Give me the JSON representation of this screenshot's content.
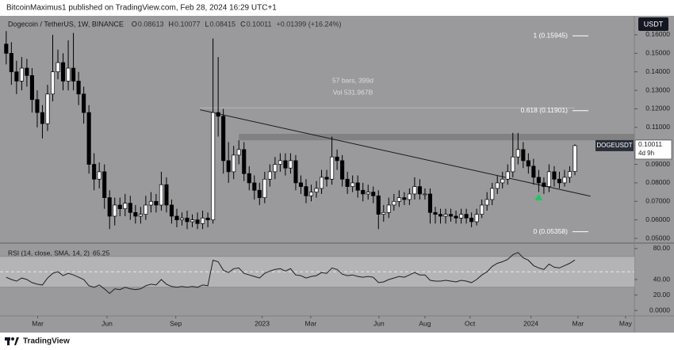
{
  "header": "BitcoinMaximus1 published on TradingView.com, Feb 28, 2024 16:29 UTC+1",
  "footer": "TradingView",
  "chart_data": [
    {
      "type": "candlestick",
      "legend": "Dogecoin / TetherUS, 1W, BINANCE",
      "ohlc_letters": [
        "O",
        "H",
        "L",
        "C"
      ],
      "change": "+0.01399 (+16.24%)",
      "symbol": "DOGEUSDT",
      "countdown": "4d 9h",
      "currency": "USDT",
      "up_color": "#ffffff",
      "down_color": "#000000",
      "grid": false,
      "xlim": [
        -1.2,
        121.5
      ],
      "ylim": [
        0.0483,
        0.1694
      ],
      "yticks": [
        {
          "value": 0.16,
          "label": "0.16000"
        },
        {
          "value": 0.15,
          "label": "0.15000"
        },
        {
          "value": 0.14,
          "label": "0.14000"
        },
        {
          "value": 0.13,
          "label": "0.13000"
        },
        {
          "value": 0.12,
          "label": "0.12000"
        },
        {
          "value": 0.11,
          "label": "0.11000"
        },
        {
          "value": 0.1,
          "label": "0.10000"
        },
        {
          "value": 0.09,
          "label": "0.09000"
        },
        {
          "value": 0.08,
          "label": "0.08000"
        },
        {
          "value": 0.07,
          "label": "0.07000"
        },
        {
          "value": 0.06,
          "label": "0.06000"
        },
        {
          "value": 0.05,
          "label": "0.05000"
        }
      ],
      "xticks": [
        {
          "value": 6.1,
          "label": "Mar"
        },
        {
          "value": 19.5,
          "label": "Jun"
        },
        {
          "value": 32.8,
          "label": "Sep"
        },
        {
          "value": 49.5,
          "label": "2023"
        },
        {
          "value": 58.9,
          "label": "Mar"
        },
        {
          "value": 72.1,
          "label": "Jun"
        },
        {
          "value": 81,
          "label": "Aug"
        },
        {
          "value": 89.7,
          "label": "Oct"
        },
        {
          "value": 101.5,
          "label": "2024"
        },
        {
          "value": 110.6,
          "label": "Mar"
        },
        {
          "value": 119.8,
          "label": "May"
        }
      ],
      "open": [
        0.155,
        0.15,
        0.14,
        0.135,
        0.142,
        0.138,
        0.125,
        0.118,
        0.112,
        0.128,
        0.14,
        0.145,
        0.135,
        0.142,
        0.135,
        0.128,
        0.118,
        0.09,
        0.082,
        0.086,
        0.072,
        0.062,
        0.068,
        0.066,
        0.069,
        0.064,
        0.062,
        0.063,
        0.068,
        0.07,
        0.068,
        0.079,
        0.068,
        0.062,
        0.06,
        0.061,
        0.059,
        0.06,
        0.058,
        0.061,
        0.06,
        0.118,
        0.116,
        0.092,
        0.086,
        0.095,
        0.098,
        0.085,
        0.08,
        0.076,
        0.072,
        0.082,
        0.086,
        0.09,
        0.092,
        0.088,
        0.092,
        0.08,
        0.078,
        0.073,
        0.075,
        0.077,
        0.083,
        0.082,
        0.094,
        0.092,
        0.082,
        0.078,
        0.08,
        0.076,
        0.074,
        0.075,
        0.073,
        0.063,
        0.064,
        0.068,
        0.07,
        0.072,
        0.071,
        0.074,
        0.078,
        0.074,
        0.074,
        0.064,
        0.063,
        0.062,
        0.063,
        0.062,
        0.061,
        0.063,
        0.061,
        0.059,
        0.063,
        0.068,
        0.071,
        0.077,
        0.08,
        0.082,
        0.086,
        0.094,
        0.098,
        0.092,
        0.089,
        0.083,
        0.08,
        0.078,
        0.086,
        0.082,
        0.08,
        0.083,
        0.08613
      ],
      "high": [
        0.162,
        0.156,
        0.146,
        0.148,
        0.147,
        0.142,
        0.13,
        0.122,
        0.133,
        0.16,
        0.152,
        0.15,
        0.157,
        0.161,
        0.14,
        0.132,
        0.122,
        0.096,
        0.091,
        0.09,
        0.076,
        0.072,
        0.072,
        0.074,
        0.073,
        0.068,
        0.067,
        0.073,
        0.075,
        0.074,
        0.086,
        0.083,
        0.071,
        0.066,
        0.064,
        0.065,
        0.063,
        0.064,
        0.065,
        0.064,
        0.158,
        0.148,
        0.12,
        0.102,
        0.1,
        0.103,
        0.102,
        0.089,
        0.084,
        0.08,
        0.086,
        0.09,
        0.094,
        0.096,
        0.096,
        0.096,
        0.095,
        0.084,
        0.082,
        0.079,
        0.081,
        0.087,
        0.087,
        0.105,
        0.098,
        0.095,
        0.086,
        0.084,
        0.084,
        0.08,
        0.079,
        0.078,
        0.076,
        0.068,
        0.072,
        0.074,
        0.076,
        0.075,
        0.077,
        0.083,
        0.082,
        0.077,
        0.077,
        0.067,
        0.066,
        0.066,
        0.066,
        0.065,
        0.066,
        0.066,
        0.064,
        0.066,
        0.071,
        0.075,
        0.08,
        0.084,
        0.086,
        0.09,
        0.107,
        0.107,
        0.102,
        0.096,
        0.093,
        0.087,
        0.083,
        0.09,
        0.089,
        0.086,
        0.087,
        0.089,
        0.10077
      ],
      "low": [
        0.144,
        0.133,
        0.128,
        0.13,
        0.132,
        0.118,
        0.11,
        0.104,
        0.108,
        0.124,
        0.136,
        0.13,
        0.13,
        0.13,
        0.122,
        0.112,
        0.085,
        0.076,
        0.077,
        0.066,
        0.055,
        0.057,
        0.062,
        0.062,
        0.06,
        0.058,
        0.058,
        0.06,
        0.064,
        0.064,
        0.065,
        0.064,
        0.058,
        0.056,
        0.057,
        0.055,
        0.056,
        0.055,
        0.055,
        0.056,
        0.058,
        0.105,
        0.085,
        0.08,
        0.082,
        0.09,
        0.081,
        0.076,
        0.071,
        0.068,
        0.069,
        0.078,
        0.082,
        0.086,
        0.084,
        0.085,
        0.076,
        0.074,
        0.069,
        0.07,
        0.072,
        0.074,
        0.078,
        0.079,
        0.087,
        0.078,
        0.074,
        0.075,
        0.072,
        0.07,
        0.071,
        0.069,
        0.055,
        0.059,
        0.061,
        0.065,
        0.067,
        0.068,
        0.068,
        0.071,
        0.071,
        0.071,
        0.058,
        0.058,
        0.058,
        0.058,
        0.059,
        0.058,
        0.058,
        0.058,
        0.056,
        0.057,
        0.061,
        0.065,
        0.068,
        0.074,
        0.077,
        0.079,
        0.083,
        0.09,
        0.088,
        0.085,
        0.079,
        0.075,
        0.074,
        0.075,
        0.078,
        0.077,
        0.078,
        0.08,
        0.08415
      ],
      "close": [
        0.15,
        0.14,
        0.135,
        0.142,
        0.138,
        0.125,
        0.118,
        0.112,
        0.128,
        0.14,
        0.145,
        0.135,
        0.142,
        0.135,
        0.128,
        0.118,
        0.09,
        0.082,
        0.086,
        0.072,
        0.062,
        0.068,
        0.066,
        0.069,
        0.064,
        0.062,
        0.063,
        0.068,
        0.07,
        0.068,
        0.079,
        0.068,
        0.062,
        0.06,
        0.061,
        0.059,
        0.06,
        0.058,
        0.061,
        0.06,
        0.118,
        0.116,
        0.092,
        0.086,
        0.095,
        0.098,
        0.085,
        0.08,
        0.076,
        0.072,
        0.082,
        0.086,
        0.09,
        0.092,
        0.088,
        0.092,
        0.08,
        0.078,
        0.073,
        0.075,
        0.077,
        0.083,
        0.082,
        0.094,
        0.092,
        0.082,
        0.078,
        0.08,
        0.076,
        0.074,
        0.075,
        0.073,
        0.063,
        0.064,
        0.068,
        0.07,
        0.072,
        0.071,
        0.074,
        0.078,
        0.074,
        0.074,
        0.064,
        0.063,
        0.062,
        0.063,
        0.062,
        0.061,
        0.063,
        0.061,
        0.059,
        0.063,
        0.068,
        0.071,
        0.077,
        0.08,
        0.082,
        0.086,
        0.094,
        0.098,
        0.092,
        0.089,
        0.083,
        0.08,
        0.078,
        0.086,
        0.082,
        0.08,
        0.083,
        0.08613,
        0.10011
      ],
      "fib_levels": [
        {
          "value": 0.15945,
          "label": "1 (0.15945)"
        },
        {
          "value": 0.11901,
          "label": "0.618 (0.11901)"
        },
        {
          "value": 0.05358,
          "label": "0 (0.05358)"
        }
      ],
      "measure": {
        "bars": "57 bars, 399d",
        "volume": "Vol 531.967B",
        "level": 0.1205,
        "x": [
          37.5,
          110
        ]
      },
      "resistance": {
        "y": [
          0.103,
          0.1065
        ],
        "x": [
          45,
          121.5
        ]
      },
      "trendline": {
        "x": [
          37.5,
          113
        ],
        "y": [
          0.1195,
          0.0728
        ]
      },
      "marker": {
        "x": 103,
        "y": 0.0722,
        "color": "#22c55e"
      }
    },
    {
      "type": "line",
      "label": "RSI (14, close, SMA, 14, 2)",
      "color": "#1f1f1f",
      "xlim": [
        -1.2,
        121.5
      ],
      "ylim": [
        -6,
        84
      ],
      "band": [
        30,
        70
      ],
      "midline": 50,
      "yticks": [
        {
          "value": 80,
          "label": "80.00"
        },
        {
          "value": 40,
          "label": "40.00"
        },
        {
          "value": 20,
          "label": "20.00"
        },
        {
          "value": 0,
          "label": "0.0000"
        }
      ],
      "values": [
        43,
        40,
        38,
        42,
        40,
        36,
        34,
        33,
        42,
        48,
        50,
        45,
        48,
        46,
        43,
        40,
        32,
        30,
        33,
        28,
        22,
        28,
        27,
        30,
        28,
        27,
        28,
        32,
        34,
        33,
        40,
        34,
        31,
        30,
        31,
        30,
        31,
        30,
        33,
        32,
        65,
        63,
        52,
        49,
        54,
        55,
        48,
        46,
        44,
        42,
        48,
        51,
        53,
        54,
        51,
        54,
        46,
        45,
        42,
        44,
        45,
        49,
        48,
        55,
        53,
        47,
        45,
        46,
        44,
        43,
        44,
        43,
        36,
        37,
        40,
        42,
        44,
        43,
        46,
        49,
        46,
        46,
        39,
        38,
        38,
        39,
        38,
        37,
        39,
        38,
        36,
        40,
        46,
        50,
        57,
        61,
        63,
        66,
        72,
        75,
        68,
        65,
        58,
        55,
        53,
        60,
        56,
        55,
        58,
        61,
        65.25
      ]
    }
  ]
}
